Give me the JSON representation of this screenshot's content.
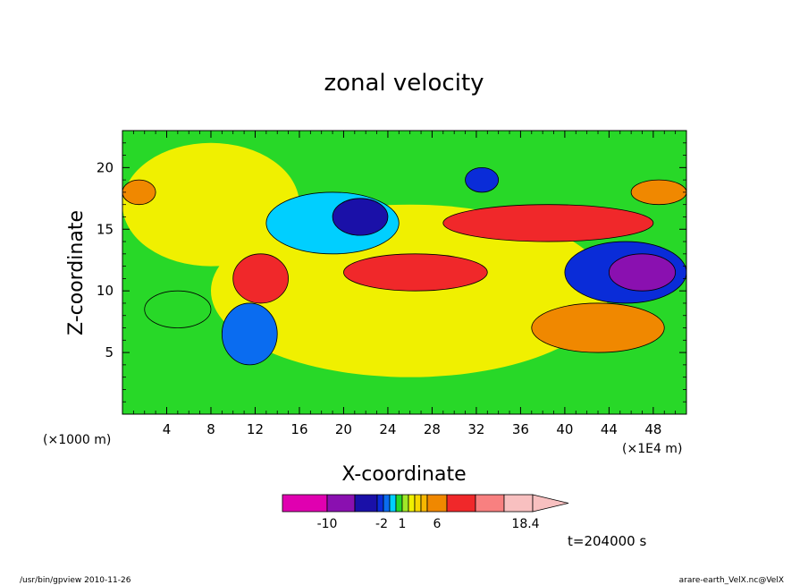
{
  "chart_data": {
    "type": "heatmap",
    "title": "zonal velocity",
    "xlabel": "X-coordinate",
    "ylabel": "Z-coordinate",
    "y_unit_label": "(×1000 m)",
    "x_unit_label": "(×1E4 m)",
    "xlim": [
      0,
      51
    ],
    "ylim": [
      0,
      23
    ],
    "x_ticks": [
      "4",
      "8",
      "12",
      "16",
      "20",
      "24",
      "28",
      "32",
      "36",
      "40",
      "44",
      "48"
    ],
    "y_ticks": [
      "5",
      "10",
      "15",
      "20"
    ],
    "colorbar": {
      "colors": [
        "#e000b0",
        "#8a10b0",
        "#1a10a8",
        "#0a2cd8",
        "#0a6cf0",
        "#00cfff",
        "#28d828",
        "#a0e828",
        "#f0f000",
        "#f8d800",
        "#f8b800",
        "#f08800",
        "#f0282a",
        "#f88080",
        "#f8c0c0"
      ],
      "tick_labels": [
        "-10",
        "-2",
        "1",
        "6",
        "18.4"
      ],
      "extend": "max"
    },
    "regions": [
      {
        "value": -3,
        "x": [
          13,
          25
        ],
        "y": [
          13,
          18
        ]
      },
      {
        "value": -8,
        "x": [
          19,
          24
        ],
        "y": [
          14.5,
          17.5
        ]
      },
      {
        "value": -4,
        "x": [
          9,
          14
        ],
        "y": [
          4,
          9
        ]
      },
      {
        "value": -6,
        "x": [
          40,
          51
        ],
        "y": [
          9,
          14
        ]
      },
      {
        "value": -10,
        "x": [
          44,
          50
        ],
        "y": [
          10,
          13
        ]
      },
      {
        "value": -5,
        "x": [
          31,
          34
        ],
        "y": [
          18,
          20
        ]
      },
      {
        "value": -2,
        "x": [
          2,
          8
        ],
        "y": [
          7,
          10
        ]
      },
      {
        "value": 4,
        "x": [
          20,
          33
        ],
        "y": [
          10,
          13
        ]
      },
      {
        "value": 4,
        "x": [
          29,
          48
        ],
        "y": [
          14,
          17
        ]
      },
      {
        "value": 3,
        "x": [
          37,
          49
        ],
        "y": [
          5,
          9
        ]
      },
      {
        "value": 4,
        "x": [
          10,
          15
        ],
        "y": [
          9,
          13
        ]
      },
      {
        "value": 3,
        "x": [
          0,
          3
        ],
        "y": [
          17,
          19
        ]
      },
      {
        "value": 3,
        "x": [
          46,
          51
        ],
        "y": [
          17,
          19
        ]
      }
    ]
  },
  "annotation_time": "t=204000 s",
  "footer_left": "/usr/bin/gpview  2010-11-26",
  "footer_right": "arare-earth_VelX.nc@VelX"
}
